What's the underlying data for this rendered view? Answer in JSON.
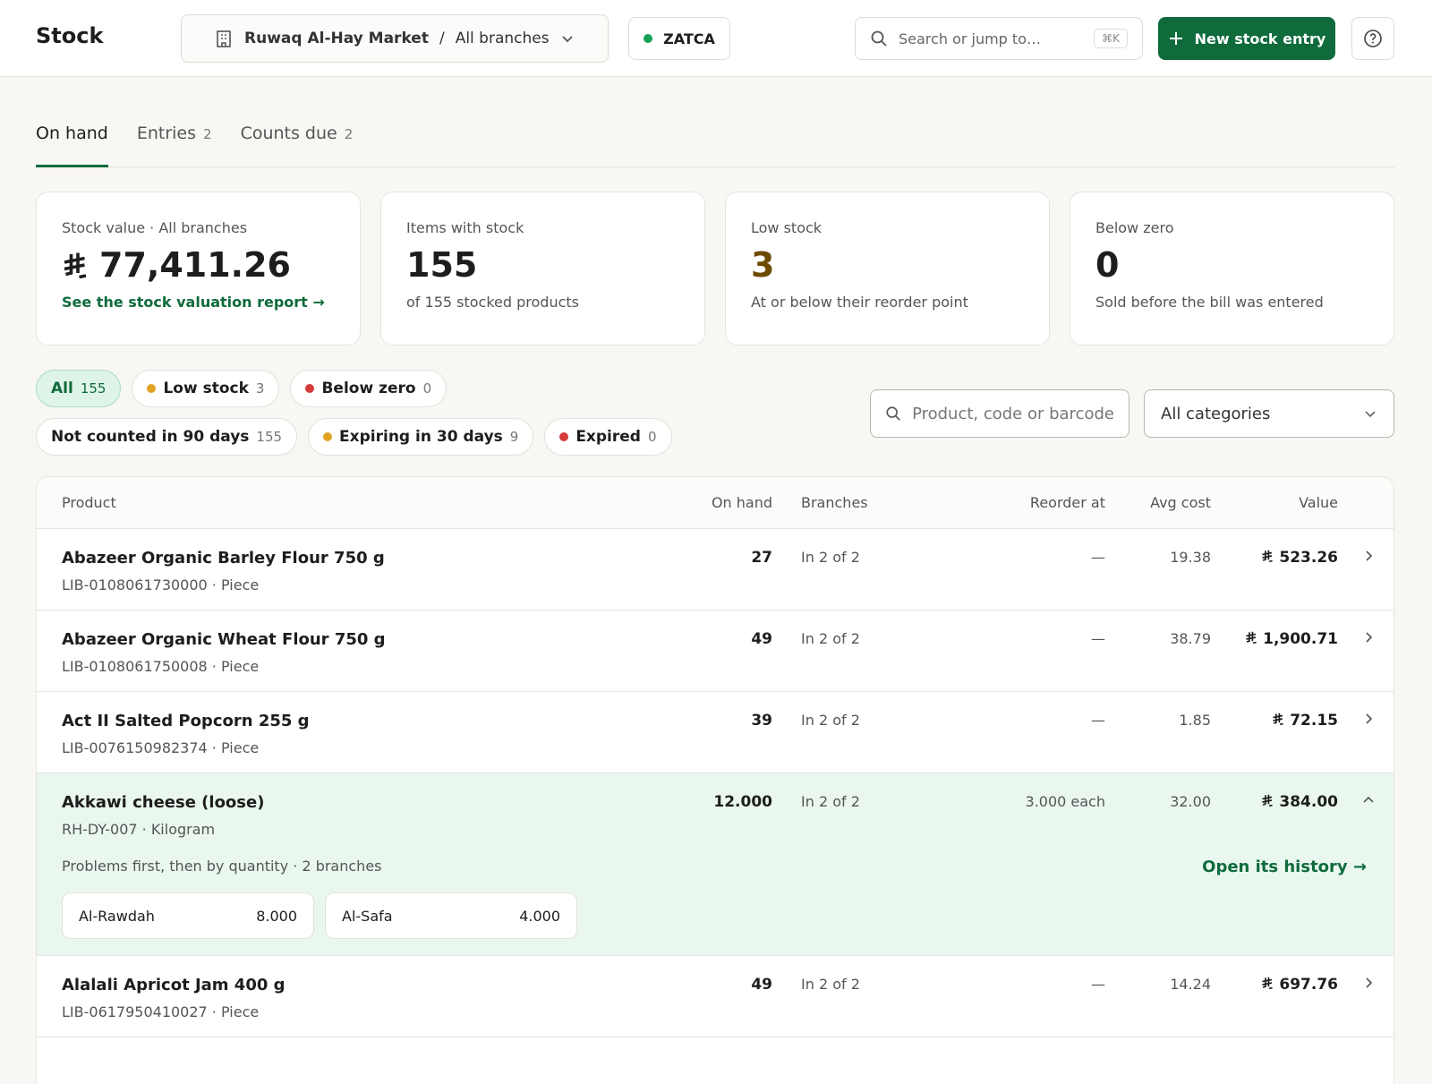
{
  "header": {
    "title": "Stock",
    "org": "Ruwaq Al-Hay Market",
    "separator": "/",
    "branch": "All branches",
    "zatca": "ZATCA",
    "search": "Search or jump to…",
    "shortcut": "⌘K",
    "new_entry": "New stock entry"
  },
  "tabs": [
    {
      "label": "On hand",
      "active": true
    },
    {
      "label": "Entries",
      "count": 2
    },
    {
      "label": "Counts due",
      "count": 2
    }
  ],
  "cards": [
    {
      "label": "Stock value · All branches",
      "value": "77,411.26",
      "currency": true,
      "link": "See the stock valuation report →"
    },
    {
      "label": "Items with stock",
      "value": "155",
      "note": "of 155 stocked products"
    },
    {
      "label": "Low stock",
      "value": "3",
      "value_color": "#6b4a00",
      "note": "At or below their reorder point"
    },
    {
      "label": "Below zero",
      "value": "0",
      "note": "Sold before the bill was entered"
    }
  ],
  "filters": [
    {
      "label": "All",
      "count": 155,
      "active": true
    },
    {
      "label": "Low stock",
      "count": 3,
      "dot": "#e0a424"
    },
    {
      "label": "Below zero",
      "count": 0,
      "dot": "#d63a3a"
    },
    {
      "label": "Not counted in 90 days",
      "count": 155
    },
    {
      "label": "Expiring in 30 days",
      "count": 9,
      "dot": "#e0a424"
    },
    {
      "label": "Expired",
      "count": 0,
      "dot": "#d63a3a"
    }
  ],
  "search": {
    "placeholder": "Product, code or barcode",
    "category": "All categories"
  },
  "table": {
    "columns": [
      "Product",
      "On hand",
      "Branches",
      "Reorder at",
      "Avg cost",
      "Value"
    ],
    "rows": [
      {
        "name": "Abazeer Organic Barley Flour 750 g",
        "code": "LIB-0108061730000 · Piece",
        "on_hand": "27",
        "branches": "In 2 of 2",
        "reorder": "—",
        "avg_cost": "19.38",
        "value": "523.26"
      },
      {
        "name": "Abazeer Organic Wheat Flour 750 g",
        "code": "LIB-0108061750008 · Piece",
        "on_hand": "49",
        "branches": "In 2 of 2",
        "reorder": "—",
        "avg_cost": "38.79",
        "value": "1,900.71"
      },
      {
        "name": "Act II Salted Popcorn 255 g",
        "code": "LIB-0076150982374 · Piece",
        "on_hand": "39",
        "branches": "In 2 of 2",
        "reorder": "—",
        "avg_cost": "1.85",
        "value": "72.15"
      },
      {
        "name": "Akkawi cheese (loose)",
        "code": "RH-DY-007 · Kilogram",
        "on_hand": "12.000",
        "branches": "In 2 of 2",
        "reorder": "3.000 each",
        "avg_cost": "32.00",
        "value": "384.00",
        "expanded": {
          "note": "Problems first, then by quantity · 2 branches",
          "link": "Open its history →",
          "branches": [
            {
              "name": "Al-Rawdah",
              "qty": "8.000"
            },
            {
              "name": "Al-Safa",
              "qty": "4.000"
            }
          ]
        }
      },
      {
        "name": "Alalali Apricot Jam 400 g",
        "code": "LIB-0617950410027 · Piece",
        "on_hand": "49",
        "branches": "In 2 of 2",
        "reorder": "—",
        "avg_cost": "14.24",
        "value": "697.76"
      }
    ]
  }
}
